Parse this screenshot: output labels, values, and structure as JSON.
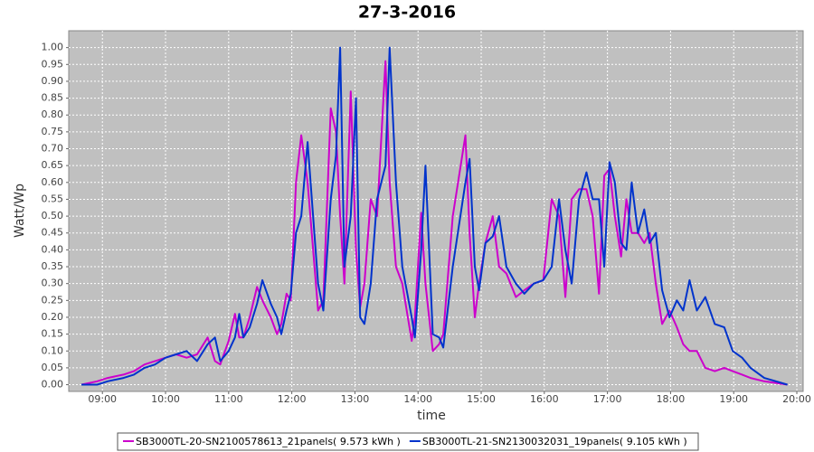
{
  "chart_data": {
    "type": "line",
    "title": "27-3-2016",
    "x_label": "time",
    "y_label": "Watt/Wp",
    "x": [
      520,
      535,
      545,
      560,
      570,
      580,
      590,
      600,
      610,
      620,
      630,
      640,
      647,
      652,
      660,
      666,
      670,
      674,
      680,
      687,
      692,
      700,
      706,
      710,
      715,
      719,
      724,
      729,
      735,
      745,
      750,
      757,
      762,
      766,
      770,
      776,
      781,
      785,
      789,
      795,
      801,
      809,
      813,
      819,
      825,
      834,
      837,
      843,
      847,
      854,
      860,
      864,
      873,
      885,
      889,
      894,
      898,
      904,
      911,
      917,
      924,
      933,
      941,
      950,
      959,
      967,
      974,
      980,
      986,
      993,
      1000,
      1006,
      1012,
      1017,
      1022,
      1027,
      1033,
      1038,
      1043,
      1049,
      1055,
      1060,
      1066,
      1072,
      1079,
      1086,
      1092,
      1098,
      1105,
      1113,
      1122,
      1131,
      1139,
      1148,
      1156,
      1169,
      1191
    ],
    "series": [
      {
        "name": "SB3000TL-20-SN2100578613_21panels( 9.573 kWh )",
        "color": "#cc00cc",
        "values": [
          0,
          0.01,
          0.02,
          0.03,
          0.04,
          0.06,
          0.07,
          0.08,
          0.09,
          0.08,
          0.09,
          0.14,
          0.07,
          0.06,
          0.13,
          0.21,
          0.14,
          0.14,
          0.2,
          0.29,
          0.25,
          0.2,
          0.15,
          0.18,
          0.27,
          0.25,
          0.6,
          0.74,
          0.6,
          0.22,
          0.25,
          0.82,
          0.75,
          0.5,
          0.3,
          0.87,
          0.4,
          0.23,
          0.3,
          0.55,
          0.5,
          0.96,
          0.6,
          0.35,
          0.3,
          0.13,
          0.2,
          0.51,
          0.3,
          0.1,
          0.12,
          0.15,
          0.5,
          0.74,
          0.45,
          0.2,
          0.3,
          0.42,
          0.5,
          0.35,
          0.33,
          0.26,
          0.28,
          0.3,
          0.31,
          0.55,
          0.5,
          0.26,
          0.55,
          0.58,
          0.58,
          0.5,
          0.27,
          0.62,
          0.64,
          0.5,
          0.38,
          0.55,
          0.45,
          0.45,
          0.42,
          0.45,
          0.3,
          0.18,
          0.22,
          0.17,
          0.12,
          0.1,
          0.1,
          0.05,
          0.04,
          0.05,
          0.04,
          0.03,
          0.02,
          0.01,
          0
        ]
      },
      {
        "name": "SB3000TL-21-SN2130032031_19panels( 9.105 kWh )",
        "color": "#0033cc",
        "values": [
          0,
          0,
          0.01,
          0.02,
          0.03,
          0.05,
          0.06,
          0.08,
          0.09,
          0.1,
          0.07,
          0.12,
          0.14,
          0.07,
          0.1,
          0.14,
          0.21,
          0.14,
          0.17,
          0.24,
          0.31,
          0.24,
          0.2,
          0.15,
          0.22,
          0.27,
          0.45,
          0.5,
          0.72,
          0.3,
          0.22,
          0.55,
          0.68,
          1.0,
          0.35,
          0.5,
          0.85,
          0.2,
          0.18,
          0.3,
          0.55,
          0.65,
          1.0,
          0.6,
          0.35,
          0.2,
          0.14,
          0.4,
          0.65,
          0.15,
          0.14,
          0.11,
          0.35,
          0.6,
          0.67,
          0.35,
          0.28,
          0.42,
          0.44,
          0.5,
          0.35,
          0.3,
          0.27,
          0.3,
          0.31,
          0.35,
          0.55,
          0.4,
          0.3,
          0.55,
          0.63,
          0.55,
          0.55,
          0.35,
          0.66,
          0.6,
          0.42,
          0.4,
          0.6,
          0.45,
          0.52,
          0.42,
          0.45,
          0.28,
          0.2,
          0.25,
          0.22,
          0.31,
          0.22,
          0.26,
          0.18,
          0.17,
          0.1,
          0.08,
          0.05,
          0.02,
          0
        ]
      }
    ],
    "xlim": [
      508,
      1206
    ],
    "xticks": [
      {
        "value": 540,
        "label": "09:00"
      },
      {
        "value": 600,
        "label": "10:00"
      },
      {
        "value": 660,
        "label": "11:00"
      },
      {
        "value": 720,
        "label": "12:00"
      },
      {
        "value": 780,
        "label": "13:00"
      },
      {
        "value": 840,
        "label": "14:00"
      },
      {
        "value": 900,
        "label": "15:00"
      },
      {
        "value": 960,
        "label": "16:00"
      },
      {
        "value": 1020,
        "label": "17:00"
      },
      {
        "value": 1080,
        "label": "18:00"
      },
      {
        "value": 1140,
        "label": "19:00"
      },
      {
        "value": 1200,
        "label": "20:00"
      }
    ],
    "ylim": [
      -0.02,
      1.05
    ],
    "yticks": [
      {
        "value": 0,
        "label": "0.00"
      },
      {
        "value": 0.05,
        "label": "0.05"
      },
      {
        "value": 0.1,
        "label": "0.10"
      },
      {
        "value": 0.15,
        "label": "0.15"
      },
      {
        "value": 0.2,
        "label": "0.20"
      },
      {
        "value": 0.25,
        "label": "0.25"
      },
      {
        "value": 0.3,
        "label": "0.30"
      },
      {
        "value": 0.35,
        "label": "0.35"
      },
      {
        "value": 0.4,
        "label": "0.40"
      },
      {
        "value": 0.45,
        "label": "0.45"
      },
      {
        "value": 0.5,
        "label": "0.50"
      },
      {
        "value": 0.55,
        "label": "0.55"
      },
      {
        "value": 0.6,
        "label": "0.60"
      },
      {
        "value": 0.65,
        "label": "0.65"
      },
      {
        "value": 0.7,
        "label": "0.70"
      },
      {
        "value": 0.75,
        "label": "0.75"
      },
      {
        "value": 0.8,
        "label": "0.80"
      },
      {
        "value": 0.85,
        "label": "0.85"
      },
      {
        "value": 0.9,
        "label": "0.90"
      },
      {
        "value": 0.95,
        "label": "0.95"
      },
      {
        "value": 1,
        "label": "1.00"
      }
    ],
    "grid": true,
    "legend": "bottom"
  }
}
